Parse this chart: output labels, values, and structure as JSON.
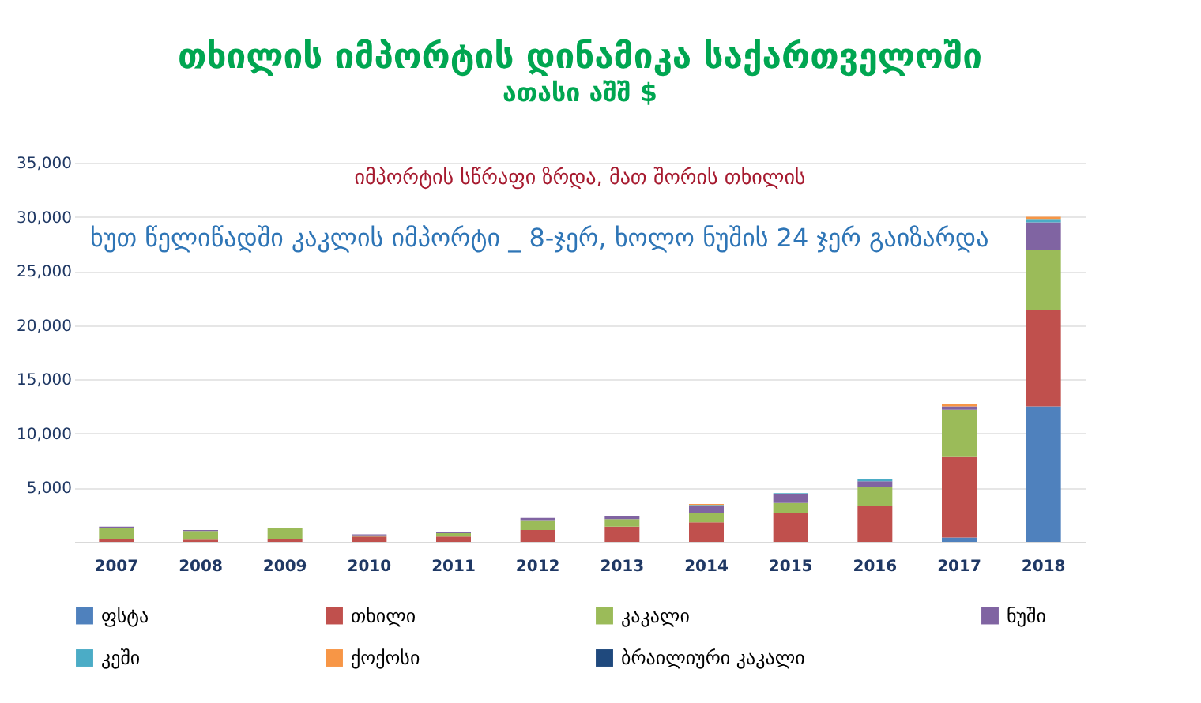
{
  "chart_data": {
    "type": "bar",
    "stacked": true,
    "title": "თხილის იმპორტის დინამიკა საქართველოში",
    "subtitle": "ათასი აშშ $",
    "annotations": [
      "იმპორტის სწრაფი ზრდა, მათ შორის თხილის",
      "ხუთ წელიწადში კაკლის იმპორტი _ 8-ჯერ, ხოლო ნუშის 24 ჯერ გაიზარდა"
    ],
    "categories": [
      "2007",
      "2008",
      "2009",
      "2010",
      "2011",
      "2012",
      "2013",
      "2014",
      "2015",
      "2016",
      "2017",
      "2018"
    ],
    "series": [
      {
        "name": "ფსტა",
        "color": "#4f81bd",
        "values": [
          0,
          0,
          0,
          0,
          0,
          0,
          0,
          0,
          0,
          0,
          400,
          12500
        ]
      },
      {
        "name": "თხილი",
        "color": "#c0504d",
        "values": [
          300,
          200,
          300,
          500,
          500,
          1100,
          1400,
          1800,
          2700,
          3300,
          7500,
          8900
        ]
      },
      {
        "name": "კაკალი",
        "color": "#9bbb59",
        "values": [
          1000,
          800,
          1000,
          100,
          300,
          900,
          700,
          900,
          900,
          1800,
          4300,
          5500
        ]
      },
      {
        "name": "ნუში",
        "color": "#8064a2",
        "values": [
          100,
          100,
          0,
          100,
          100,
          200,
          300,
          600,
          800,
          500,
          300,
          2600
        ]
      },
      {
        "name": "კეში",
        "color": "#4bacc6",
        "values": [
          0,
          0,
          0,
          0,
          0,
          0,
          0,
          100,
          100,
          200,
          0,
          300
        ]
      },
      {
        "name": "ქოქოსი",
        "color": "#f79646",
        "values": [
          0,
          0,
          0,
          0,
          0,
          0,
          0,
          100,
          0,
          0,
          200,
          200
        ]
      },
      {
        "name": "ბრაილიური კაკალი",
        "color": "#1f497d",
        "values": [
          0,
          0,
          0,
          0,
          0,
          0,
          0,
          0,
          0,
          0,
          0,
          0
        ]
      }
    ],
    "ylim": [
      0,
      35000
    ],
    "yticks": [
      {
        "value": 5000,
        "label": "5,000"
      },
      {
        "value": 10000,
        "label": "10,000"
      },
      {
        "value": 15000,
        "label": "15,000"
      },
      {
        "value": 20000,
        "label": "20,000"
      },
      {
        "value": 25000,
        "label": "25,000"
      },
      {
        "value": 30000,
        "label": "30,000"
      },
      {
        "value": 35000,
        "label": "35,000"
      }
    ],
    "grid": "y",
    "legend": "bottom"
  }
}
